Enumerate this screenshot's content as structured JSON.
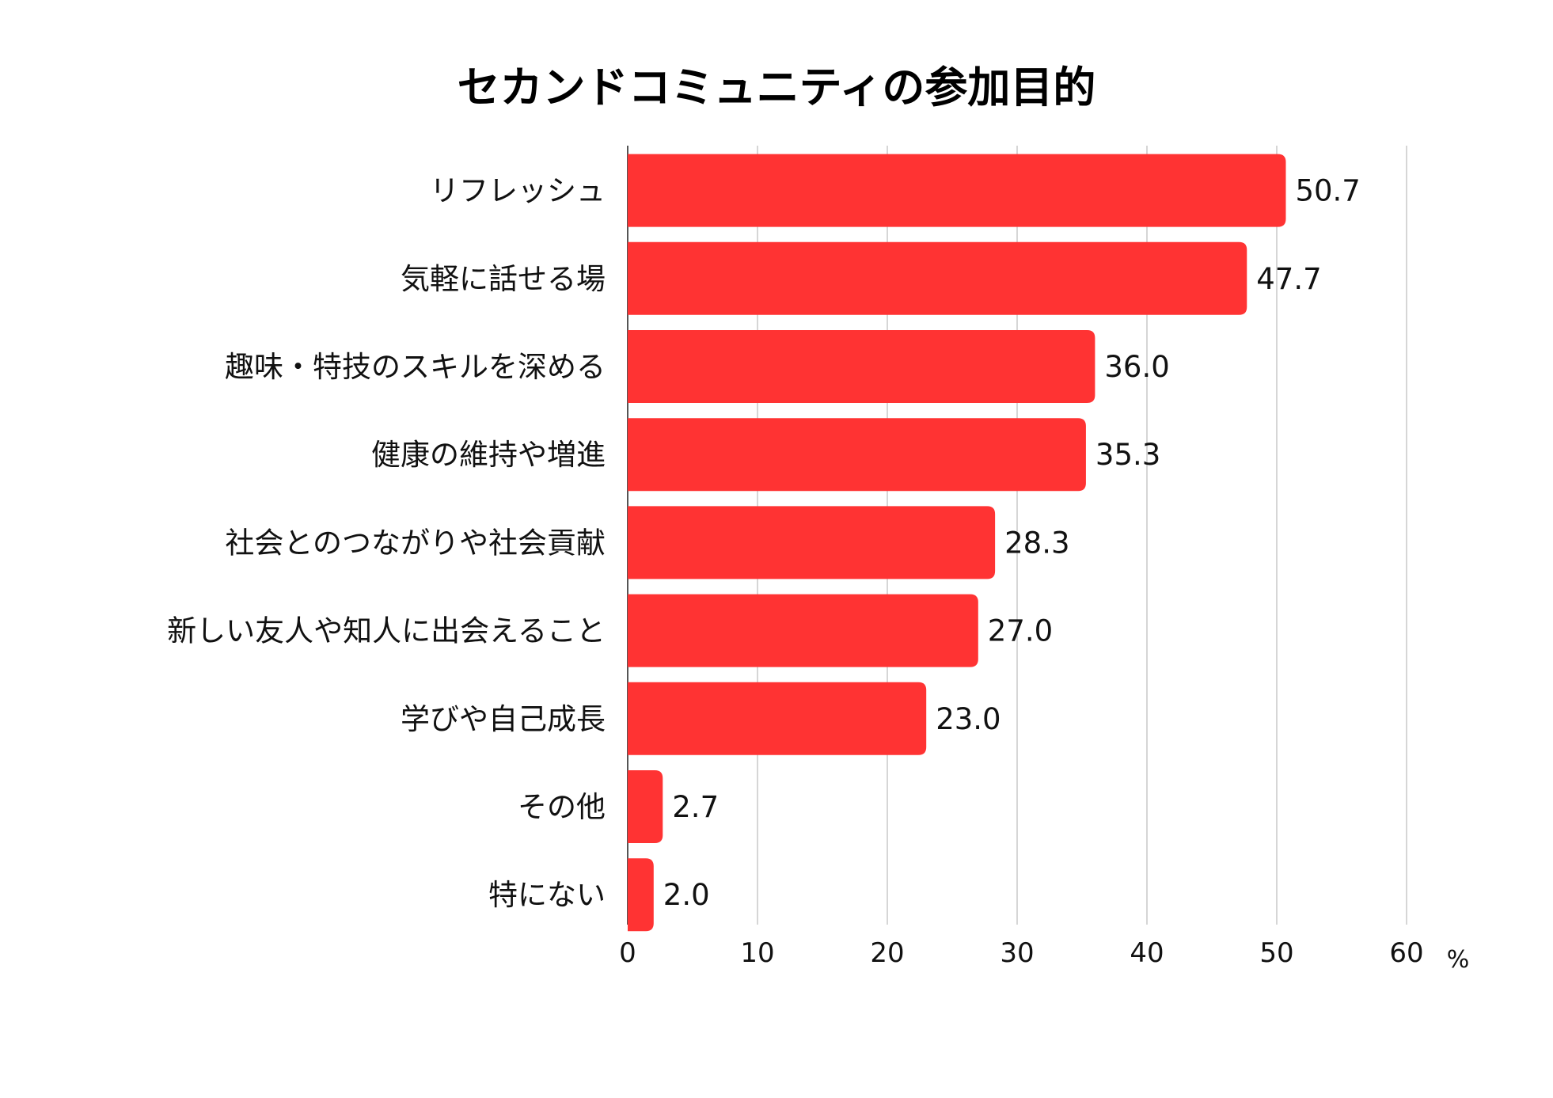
{
  "colors": {
    "bar": "#ff3333",
    "grid": "#c8c8c8",
    "axis": "#555555",
    "text": "#111111",
    "background": "#ffffff"
  },
  "chart_data": {
    "type": "bar",
    "orientation": "horizontal",
    "title": "セカンドコミュニティの参加目的",
    "xlabel": "",
    "ylabel": "",
    "unit": "%",
    "xlim": [
      0,
      60
    ],
    "ticks": [
      "0",
      "10",
      "20",
      "30",
      "40",
      "50",
      "60"
    ],
    "grid": "vertical",
    "legend": "none",
    "categories": [
      "リフレッシュ",
      "気軽に話せる場",
      "趣味・特技のスキルを深める",
      "健康の維持や増進",
      "社会とのつながりや社会貢献",
      "新しい友人や知人に出会えること",
      "学びや自己成長",
      "その他",
      "特にない"
    ],
    "values": [
      50.7,
      47.7,
      36.0,
      35.3,
      28.3,
      27.0,
      23.0,
      2.7,
      2.0
    ],
    "value_labels": [
      "50.7",
      "47.7",
      "36.0",
      "35.3",
      "28.3",
      "27.0",
      "23.0",
      "2.7",
      "2.0"
    ]
  }
}
